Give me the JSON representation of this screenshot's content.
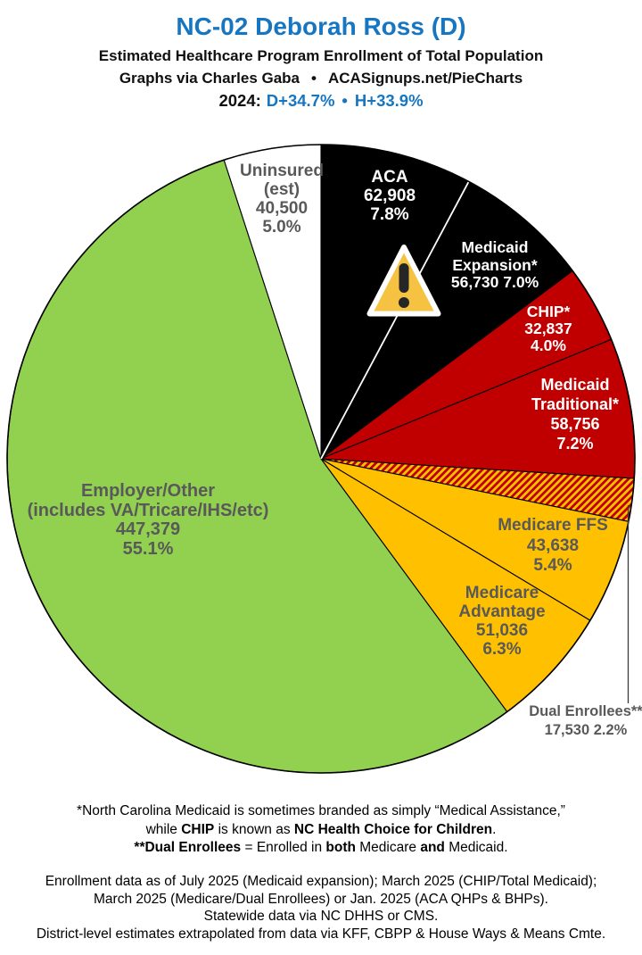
{
  "header": {
    "title": "NC-02 Deborah Ross (D)",
    "subtitle": "Estimated Healthcare Program Enrollment of Total Population",
    "credit_left": "Graphs via Charles Gaba",
    "credit_bullet": "•",
    "credit_right": "ACASignups.net/PieCharts",
    "margin_year": "2024:",
    "margin_dem": "D+34.7%",
    "margin_bullet": "•",
    "margin_house": "H+33.9%"
  },
  "colors": {
    "title_blue": "#1776C2",
    "pie_black": "#000000",
    "pie_red": "#C00000",
    "pie_gold": "#FFC000",
    "pie_green": "#92D050",
    "pie_white": "#FFFFFF",
    "label_gray": "#595959",
    "warning_yellow": "#F5C242"
  },
  "chart_data": {
    "type": "pie",
    "title": "Estimated Healthcare Program Enrollment of Total Population",
    "start_angle_deg": 0,
    "direction": "clockwise",
    "white_separator_after_pct": 7.8,
    "hatch": {
      "colors": [
        "#C00000",
        "#FFC000"
      ],
      "angle_deg": 45
    },
    "slices": [
      {
        "name": "ACA",
        "value": 62908,
        "pct": 7.8,
        "color": "#000000",
        "text_color": "#FFFFFF",
        "label_lines": [
          "ACA",
          "62,908",
          "7.8%"
        ]
      },
      {
        "name": "Medicaid Expansion*",
        "value": 56730,
        "pct": 7.0,
        "color": "#000000",
        "text_color": "#FFFFFF",
        "label_lines": [
          "Medicaid",
          "Expansion*",
          "56,730 7.0%"
        ]
      },
      {
        "name": "CHIP*",
        "value": 32837,
        "pct": 4.0,
        "color": "#C00000",
        "text_color": "#FFFFFF",
        "label_lines": [
          "CHIP*",
          "32,837",
          "4.0%"
        ]
      },
      {
        "name": "Medicaid Traditional*",
        "value": 58756,
        "pct": 7.2,
        "color": "#C00000",
        "text_color": "#FFFFFF",
        "label_lines": [
          "Medicaid",
          "Traditional*",
          "58,756",
          "7.2%"
        ]
      },
      {
        "name": "Dual Enrollees**",
        "value": 17530,
        "pct": 2.2,
        "color": "hatch",
        "text_color": "#595959",
        "label_lines": [
          "Dual Enrollees**",
          "17,530 2.2%"
        ]
      },
      {
        "name": "Medicare FFS",
        "value": 43638,
        "pct": 5.4,
        "color": "#FFC000",
        "text_color": "#595959",
        "label_lines": [
          "Medicare FFS",
          "43,638",
          "5.4%"
        ]
      },
      {
        "name": "Medicare Advantage",
        "value": 51036,
        "pct": 6.3,
        "color": "#FFC000",
        "text_color": "#595959",
        "label_lines": [
          "Medicare",
          "Advantage",
          "51,036",
          "6.3%"
        ]
      },
      {
        "name": "Employer/Other (includes VA/Tricare/IHS/etc)",
        "value": 447379,
        "pct": 55.1,
        "color": "#92D050",
        "text_color": "#595959",
        "label_lines": [
          "Employer/Other",
          "(includes VA/Tricare/IHS/etc)",
          "447,379",
          "55.1%"
        ]
      },
      {
        "name": "Uninsured (est)",
        "value": 40500,
        "pct": 5.0,
        "color": "#FFFFFF",
        "text_color": "#595959",
        "label_lines": [
          "Uninsured",
          "(est)",
          "40,500",
          "5.0%"
        ]
      }
    ]
  },
  "footnotes": {
    "l1": "*North Carolina Medicaid is sometimes branded as simply “Medical Assistance,”",
    "l2a": "while ",
    "l2b": "CHIP",
    "l2c": " is known as ",
    "l2d": "NC Health Choice for Children",
    "l2e": ".",
    "l3a": "**Dual Enrollees",
    "l3b": " = Enrolled in ",
    "l3c": "both",
    "l3d": " Medicare ",
    "l3e": "and",
    "l3f": " Medicaid.",
    "l4": "Enrollment data as of July 2025 (Medicaid expansion); March 2025 (CHIP/Total Medicaid);",
    "l5": "March 2025 (Medicare/Dual Enrollees) or Jan. 2025 (ACA QHPs & BHPs).",
    "l6": "Statewide data via NC DHHS or CMS.",
    "l7": "District-level estimates extrapolated from data via KFF, CBPP & House Ways & Means Cmte."
  }
}
